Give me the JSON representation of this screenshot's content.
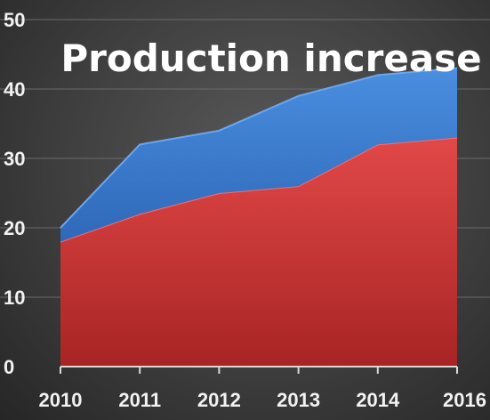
{
  "chart_data": {
    "type": "area",
    "title": "Production increase",
    "xlabel": "",
    "ylabel": "",
    "categories": [
      "2010",
      "2011",
      "2012",
      "2013",
      "2014",
      "2016"
    ],
    "ylim": [
      0,
      50
    ],
    "yticks": [
      0,
      10,
      20,
      30,
      40,
      50
    ],
    "grid": true,
    "stacked": true,
    "series": [
      {
        "values": [
          18,
          22,
          25,
          26,
          32,
          33
        ],
        "color": "#d23a3a"
      },
      {
        "values": [
          2,
          10,
          9,
          13,
          10,
          10
        ],
        "color": "#3f7fd0"
      }
    ]
  },
  "colors": {
    "text": "#ffffff",
    "tick_text": "#f2f2f2",
    "grid": "#6a6a6a",
    "axis": "#d9d9d9"
  }
}
